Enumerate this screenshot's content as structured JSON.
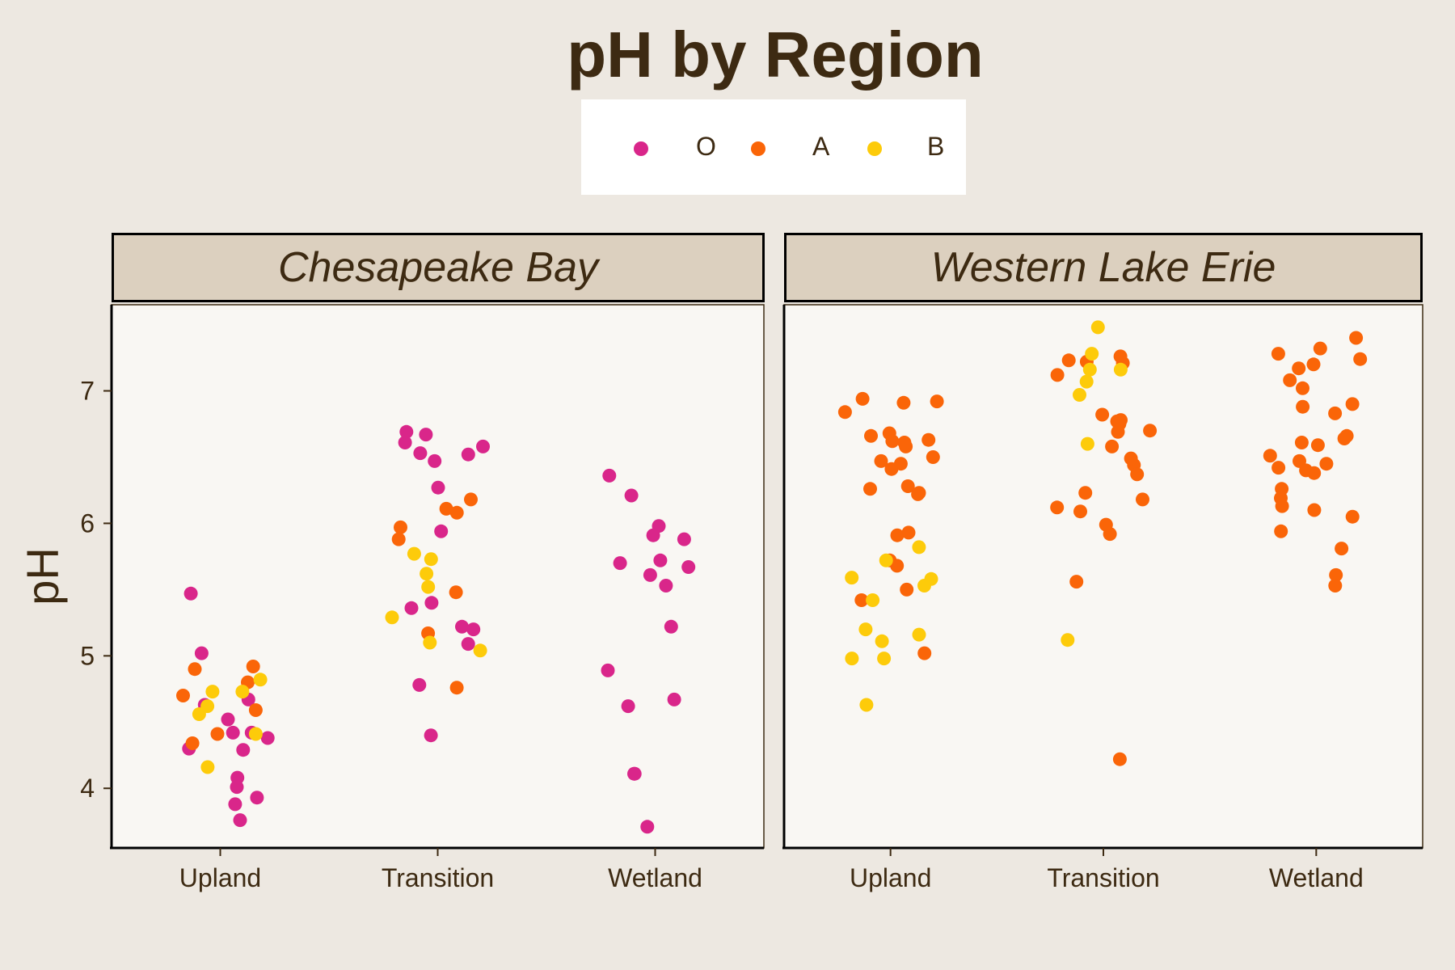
{
  "chart_data": {
    "type": "scatter",
    "title": "pH by Region",
    "ylabel": "pH",
    "xlabel": "",
    "ylim": [
      3.55,
      7.65
    ],
    "yticks": [
      4,
      5,
      6,
      7
    ],
    "categories": [
      "Upland",
      "Transition",
      "Wetland"
    ],
    "legend": {
      "placement": "top",
      "entries": [
        {
          "name": "O",
          "color": "#d9268a"
        },
        {
          "name": "A",
          "color": "#fa6508"
        },
        {
          "name": "B",
          "color": "#fdcb0a"
        }
      ]
    },
    "panels": [
      {
        "name": "Chesapeake Bay",
        "points": {
          "Upland": {
            "O": [
              3.88,
              5.02,
              4.42,
              4.38,
              4.08,
              4.01,
              4.3,
              3.93,
              3.76,
              4.42,
              4.29,
              4.63,
              4.67,
              5.47,
              4.52
            ],
            "A": [
              4.9,
              4.34,
              4.8,
              4.59,
              4.92,
              4.7,
              4.41
            ],
            "B": [
              4.73,
              4.62,
              4.56,
              4.16,
              4.82,
              4.41,
              4.73
            ]
          },
          "Transition": {
            "O": [
              4.4,
              6.52,
              6.69,
              6.61,
              6.53,
              6.67,
              6.27,
              6.58,
              6.47,
              5.22,
              5.36,
              5.4,
              5.2,
              5.09,
              4.78,
              5.94
            ],
            "A": [
              6.18,
              6.08,
              5.97,
              6.11,
              5.88,
              5.48,
              5.17,
              4.76
            ],
            "B": [
              5.77,
              5.62,
              5.52,
              5.1,
              5.04,
              5.73,
              5.29
            ]
          },
          "Wetland": {
            "O": [
              6.21,
              5.7,
              5.22,
              4.89,
              4.11,
              4.11,
              3.71,
              4.62,
              5.88,
              5.91,
              5.98,
              5.67,
              5.53,
              4.67,
              6.36,
              5.72,
              5.61
            ],
            "A": [],
            "B": []
          }
        }
      },
      {
        "name": "Western Lake Erie",
        "points": {
          "Upland": {
            "O": [],
            "A": [
              6.41,
              6.58,
              6.66,
              6.68,
              6.5,
              6.94,
              6.62,
              6.63,
              6.45,
              6.84,
              6.91,
              6.61,
              6.47,
              6.23,
              6.28,
              6.26,
              6.22,
              6.92,
              5.72,
              5.42,
              5.68,
              5.5,
              5.02,
              5.91,
              5.93
            ],
            "B": [
              5.59,
              5.58,
              4.98,
              4.63,
              5.72,
              5.82,
              5.42,
              5.53,
              5.2,
              5.16,
              5.11,
              4.98
            ]
          },
          "Transition": {
            "O": [],
            "A": [
              7.12,
              7.22,
              7.21,
              6.44,
              6.49,
              6.7,
              6.58,
              6.37,
              6.23,
              6.12,
              6.09,
              5.99,
              6.77,
              6.78,
              6.75,
              6.82,
              6.69,
              6.18,
              7.26,
              7.23,
              5.92,
              5.56,
              4.22
            ],
            "B": [
              7.48,
              7.07,
              7.16,
              7.16,
              7.28,
              6.97,
              6.6,
              5.12
            ]
          },
          "Wetland": {
            "O": [],
            "A": [
              7.32,
              7.24,
              6.83,
              6.59,
              6.66,
              6.64,
              6.47,
              6.38,
              6.1,
              6.13,
              6.05,
              6.61,
              6.51,
              6.45,
              6.4,
              6.42,
              6.26,
              6.19,
              5.94,
              5.81,
              5.61,
              5.53,
              7.02,
              7.08,
              7.2,
              7.4,
              7.17,
              7.28,
              6.9,
              6.88
            ],
            "B": []
          }
        }
      }
    ]
  }
}
